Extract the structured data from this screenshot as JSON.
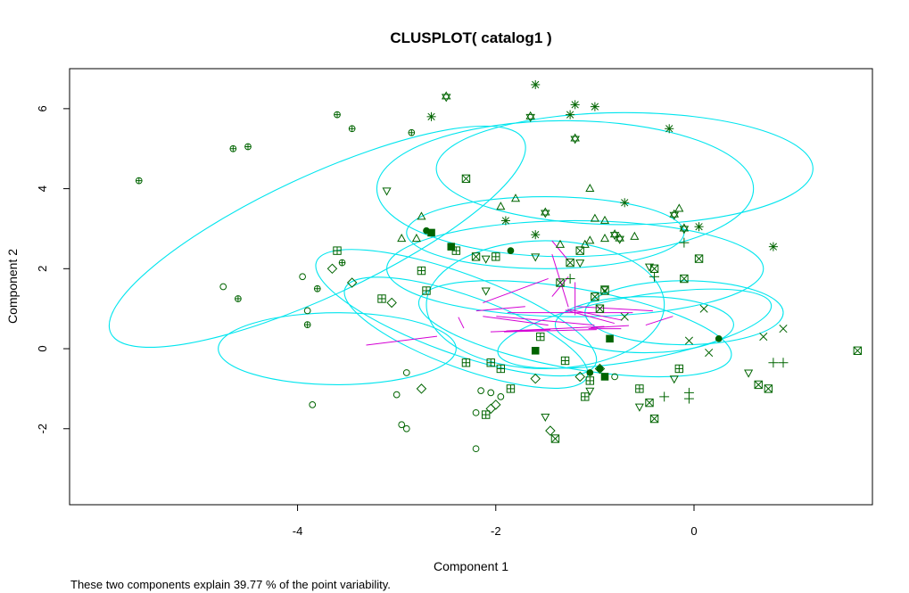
{
  "chart_data": {
    "type": "scatter",
    "title": "CLUSPLOT( catalog1 )",
    "xlabel": "Component 1",
    "ylabel": "Component 2",
    "subtitle": "These two components explain 39.77 % of the point variability.",
    "xlim": [
      -6.3,
      1.8
    ],
    "ylim": [
      -3.9,
      7.0
    ],
    "x_ticks": [
      -4,
      -2,
      0
    ],
    "y_ticks": [
      -2,
      0,
      2,
      4,
      6
    ],
    "grid": false,
    "colors": {
      "points": "#006400",
      "ellipses": "#00e5ee",
      "segments": "#d400d4",
      "axes": "#000000"
    },
    "clusters": [
      {
        "id": 1,
        "symbol": "circle",
        "center": [
          -3.6,
          0.0
        ],
        "rx": 1.2,
        "ry": 0.9,
        "angle": 0,
        "points": [
          [
            -4.75,
            1.55
          ],
          [
            -3.95,
            1.8
          ],
          [
            -3.9,
            0.95
          ],
          [
            -3.85,
            -1.4
          ],
          [
            -2.9,
            -0.6
          ],
          [
            -3.0,
            -1.15
          ],
          [
            -2.95,
            -1.9
          ],
          [
            -2.9,
            -2.0
          ],
          [
            -2.15,
            -1.05
          ],
          [
            -2.2,
            -1.6
          ],
          [
            -2.2,
            -2.5
          ],
          [
            -0.8,
            -0.7
          ],
          [
            -1.95,
            -1.2
          ],
          [
            -2.05,
            -1.1
          ]
        ]
      },
      {
        "id": 2,
        "symbol": "circle-plus",
        "center": [
          -3.8,
          2.8
        ],
        "rx": 2.3,
        "ry": 1.5,
        "angle": -25,
        "points": [
          [
            -5.6,
            4.2
          ],
          [
            -4.65,
            5.0
          ],
          [
            -4.5,
            5.05
          ],
          [
            -3.6,
            5.85
          ],
          [
            -3.45,
            5.5
          ],
          [
            -2.85,
            5.4
          ],
          [
            -3.8,
            1.5
          ],
          [
            -3.9,
            0.6
          ],
          [
            -4.6,
            1.25
          ],
          [
            -3.55,
            2.15
          ]
        ]
      },
      {
        "id": 3,
        "symbol": "diamond",
        "center": [
          -2.3,
          0.4
        ],
        "rx": 1.3,
        "ry": 0.9,
        "angle": 20,
        "points": [
          [
            -3.65,
            2.0
          ],
          [
            -3.45,
            1.65
          ],
          [
            -3.05,
            1.15
          ],
          [
            -2.75,
            -1.0
          ],
          [
            -2.05,
            -1.5
          ],
          [
            -2.0,
            -1.4
          ],
          [
            -1.45,
            -2.05
          ],
          [
            -1.6,
            -0.75
          ],
          [
            -1.15,
            -0.7
          ],
          [
            -0.95,
            -0.5
          ]
        ]
      },
      {
        "id": 4,
        "symbol": "triangle-up",
        "center": [
          -1.5,
          2.9
        ],
        "rx": 1.4,
        "ry": 0.9,
        "angle": 0,
        "points": [
          [
            -2.8,
            2.75
          ],
          [
            -2.75,
            3.3
          ],
          [
            -2.95,
            2.75
          ],
          [
            -1.95,
            3.55
          ],
          [
            -1.8,
            3.75
          ],
          [
            -1.35,
            2.6
          ],
          [
            -1.1,
            2.6
          ],
          [
            -1.05,
            2.7
          ],
          [
            -1.0,
            3.25
          ],
          [
            -0.9,
            3.2
          ],
          [
            -0.9,
            2.75
          ],
          [
            -1.05,
            4.0
          ],
          [
            -0.15,
            3.5
          ],
          [
            -0.6,
            2.8
          ]
        ]
      },
      {
        "id": 5,
        "symbol": "triangle-down",
        "center": [
          -1.2,
          0.5
        ],
        "rx": 1.6,
        "ry": 1.0,
        "angle": 10,
        "points": [
          [
            -3.1,
            3.95
          ],
          [
            -2.1,
            2.25
          ],
          [
            -2.1,
            1.45
          ],
          [
            -1.6,
            2.3
          ],
          [
            -1.15,
            2.15
          ],
          [
            -0.9,
            1.5
          ],
          [
            -0.45,
            2.05
          ],
          [
            -0.55,
            -1.45
          ],
          [
            -1.05,
            -1.05
          ],
          [
            -0.2,
            -0.75
          ],
          [
            0.55,
            -0.6
          ],
          [
            -1.5,
            -1.7
          ]
        ]
      },
      {
        "id": 6,
        "symbol": "plus",
        "center": [
          -0.6,
          0.5
        ],
        "rx": 1.4,
        "ry": 0.8,
        "angle": -10,
        "points": [
          [
            -1.25,
            1.75
          ],
          [
            -0.4,
            1.8
          ],
          [
            -0.1,
            2.65
          ],
          [
            0.8,
            -0.35
          ],
          [
            -0.3,
            -1.2
          ],
          [
            -0.05,
            -1.1
          ],
          [
            0.9,
            -0.35
          ],
          [
            -0.05,
            -1.25
          ]
        ]
      },
      {
        "id": 7,
        "symbol": "cross",
        "center": [
          -0.1,
          0.9
        ],
        "rx": 1.0,
        "ry": 0.8,
        "angle": 0,
        "points": [
          [
            0.1,
            1.0
          ],
          [
            0.9,
            0.5
          ],
          [
            -0.05,
            0.2
          ],
          [
            0.15,
            -0.1
          ],
          [
            -0.7,
            0.8
          ],
          [
            0.7,
            0.3
          ]
        ]
      },
      {
        "id": 8,
        "symbol": "asterisk",
        "center": [
          -0.7,
          4.5
        ],
        "rx": 1.9,
        "ry": 1.4,
        "angle": 0,
        "points": [
          [
            -1.6,
            6.6
          ],
          [
            -2.65,
            5.8
          ],
          [
            -1.9,
            3.2
          ],
          [
            -1.6,
            2.85
          ],
          [
            -1.25,
            5.85
          ],
          [
            -1.0,
            6.05
          ],
          [
            -0.25,
            5.5
          ],
          [
            -0.7,
            3.65
          ],
          [
            -1.2,
            6.1
          ],
          [
            0.8,
            2.55
          ],
          [
            0.05,
            3.05
          ]
        ]
      },
      {
        "id": 9,
        "symbol": "star-of-david",
        "center": [
          -1.3,
          4.0
        ],
        "rx": 1.9,
        "ry": 1.7,
        "angle": 0,
        "points": [
          [
            -2.5,
            6.3
          ],
          [
            -1.65,
            5.8
          ],
          [
            -1.2,
            5.25
          ],
          [
            -1.5,
            3.4
          ],
          [
            -0.8,
            2.85
          ],
          [
            -0.75,
            2.75
          ],
          [
            -0.2,
            3.35
          ],
          [
            -0.1,
            3.0
          ]
        ]
      },
      {
        "id": 10,
        "symbol": "square-plus",
        "center": [
          -2.4,
          0.9
        ],
        "rx": 1.5,
        "ry": 1.0,
        "angle": 20,
        "points": [
          [
            -3.6,
            2.45
          ],
          [
            -3.15,
            1.25
          ],
          [
            -2.75,
            1.95
          ],
          [
            -2.7,
            1.45
          ],
          [
            -2.4,
            2.45
          ],
          [
            -2.05,
            -0.35
          ],
          [
            -2.1,
            -1.65
          ],
          [
            -1.95,
            -0.5
          ],
          [
            -1.85,
            -1.0
          ],
          [
            -1.55,
            0.3
          ],
          [
            -1.3,
            -0.3
          ],
          [
            -1.1,
            -1.2
          ],
          [
            -1.05,
            -0.8
          ],
          [
            -0.55,
            -1.0
          ],
          [
            -0.15,
            -0.5
          ],
          [
            -2.3,
            -0.35
          ],
          [
            -2.0,
            2.3
          ]
        ]
      },
      {
        "id": 11,
        "symbol": "square-x",
        "center": [
          -1.2,
          2.0
        ],
        "rx": 1.9,
        "ry": 1.2,
        "angle": 0,
        "points": [
          [
            -2.3,
            4.25
          ],
          [
            -2.2,
            2.3
          ],
          [
            -1.35,
            1.65
          ],
          [
            -1.25,
            2.15
          ],
          [
            -1.15,
            2.45
          ],
          [
            -0.9,
            1.45
          ],
          [
            -0.95,
            1.0
          ],
          [
            -0.4,
            2.0
          ],
          [
            -0.1,
            1.75
          ],
          [
            0.05,
            2.25
          ],
          [
            0.65,
            -0.9
          ],
          [
            0.75,
            -1.0
          ],
          [
            -0.4,
            -1.75
          ],
          [
            -0.45,
            -1.35
          ],
          [
            -1.0,
            1.3
          ],
          [
            1.65,
            -0.05
          ],
          [
            -1.4,
            -2.25
          ]
        ]
      },
      {
        "id": 12,
        "symbol": "filled-square",
        "center": [
          -1.5,
          1.1
        ],
        "rx": 1.2,
        "ry": 1.6,
        "angle": 0,
        "points": [
          [
            -2.65,
            2.9
          ],
          [
            -2.45,
            2.55
          ],
          [
            -1.6,
            -0.05
          ],
          [
            -0.9,
            -0.7
          ],
          [
            -0.85,
            0.25
          ]
        ]
      },
      {
        "id": 13,
        "symbol": "filled-circle",
        "center": [
          -0.5,
          0.6
        ],
        "rx": 0.9,
        "ry": 0.7,
        "angle": 0,
        "points": [
          [
            -2.7,
            2.95
          ],
          [
            -1.85,
            2.45
          ],
          [
            -1.05,
            -0.6
          ],
          [
            -0.95,
            -0.5
          ],
          [
            0.25,
            0.25
          ]
        ]
      }
    ]
  }
}
